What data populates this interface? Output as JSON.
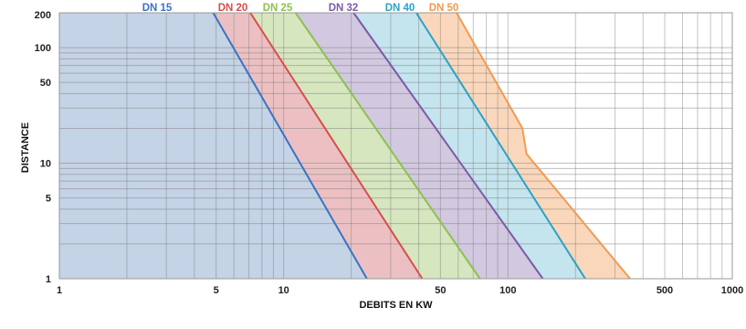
{
  "chart_data": {
    "type": "area",
    "xlabel": "DEBITS EN KW",
    "ylabel": "DISTANCE",
    "x_scale": "log",
    "y_scale": "log",
    "xlim": [
      1,
      1000
    ],
    "ylim": [
      1,
      200
    ],
    "x_tick_labels": [
      "1",
      "5",
      "10",
      "50",
      "100",
      "500",
      "1000"
    ],
    "x_tick_values": [
      1,
      5,
      10,
      50,
      100,
      500,
      1000
    ],
    "y_tick_labels": [
      "1",
      "5",
      "10",
      "50",
      "100",
      "200"
    ],
    "y_tick_values": [
      1,
      5,
      10,
      50,
      100,
      200
    ],
    "grid": true,
    "legend_position": "top",
    "series": [
      {
        "name": "DN 15",
        "color": "#3a73c4",
        "fill": "#c4d3e6",
        "points": [
          [
            4.85,
            200
          ],
          [
            23.5,
            1
          ]
        ]
      },
      {
        "name": "DN 20",
        "color": "#d74d4d",
        "fill": "#ecc0c2",
        "points": [
          [
            7.1,
            200
          ],
          [
            41.5,
            1
          ]
        ]
      },
      {
        "name": "DN 25",
        "color": "#8cc151",
        "fill": "#d6e6bf",
        "points": [
          [
            11.3,
            200
          ],
          [
            75,
            1
          ]
        ]
      },
      {
        "name": "DN 32",
        "color": "#7b5ba8",
        "fill": "#d2c8e0",
        "points": [
          [
            20.5,
            200
          ],
          [
            143,
            1
          ]
        ]
      },
      {
        "name": "DN 40",
        "color": "#2ea2c4",
        "fill": "#c4e4ee",
        "points": [
          [
            39,
            200
          ],
          [
            221,
            1
          ]
        ]
      },
      {
        "name": "DN 50",
        "color": "#f39a50",
        "fill": "#fad7bb",
        "points": [
          [
            59,
            200
          ],
          [
            116,
            20
          ],
          [
            121,
            12
          ],
          [
            350,
            1
          ]
        ]
      }
    ]
  }
}
